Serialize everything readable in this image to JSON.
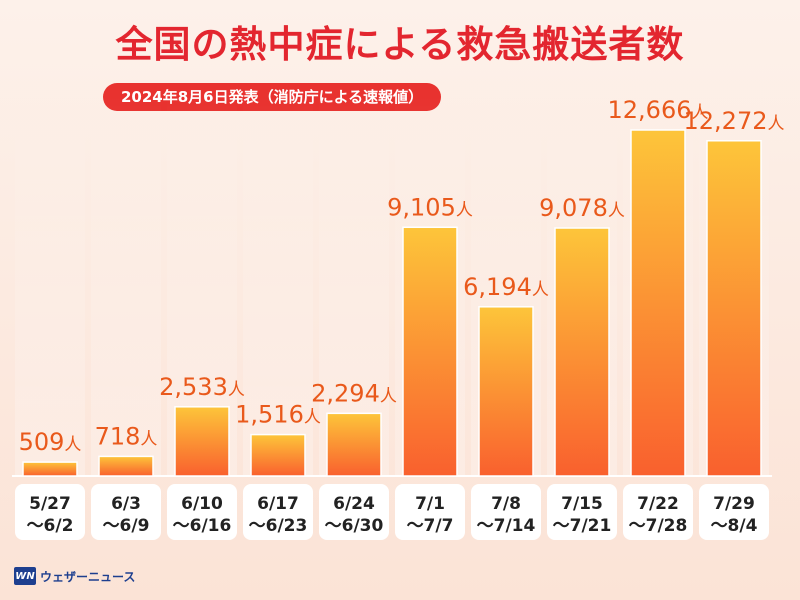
{
  "header": {
    "title": "全国の熱中症による救急搬送者数",
    "subtitle": "2024年8月6日発表（消防庁による速報値）"
  },
  "footer": {
    "logo_mark": "WN",
    "logo_text": "ウェザーニュース"
  },
  "colors": {
    "title": "#e3262f",
    "bar_top": "#fdc53a",
    "bar_bottom": "#f9602e",
    "value_label": "#e9591b"
  },
  "chart_data": {
    "type": "bar",
    "value_unit": "人",
    "categories": [
      [
        "5/27",
        "～6/2"
      ],
      [
        "6/3",
        "～6/9"
      ],
      [
        "6/10",
        "～6/16"
      ],
      [
        "6/17",
        "～6/23"
      ],
      [
        "6/24",
        "～6/30"
      ],
      [
        "7/1",
        "～7/7"
      ],
      [
        "7/8",
        "～7/14"
      ],
      [
        "7/15",
        "～7/21"
      ],
      [
        "7/22",
        "～7/28"
      ],
      [
        "7/29",
        "～8/4"
      ]
    ],
    "values": [
      509,
      718,
      2533,
      1516,
      2294,
      9105,
      6194,
      9078,
      12666,
      12272
    ],
    "value_labels": [
      "509",
      "718",
      "2,533",
      "1,516",
      "2,294",
      "9,105",
      "6,194",
      "9,078",
      "12,666",
      "12,272"
    ],
    "ylim": [
      0,
      14000
    ],
    "grid": false
  }
}
